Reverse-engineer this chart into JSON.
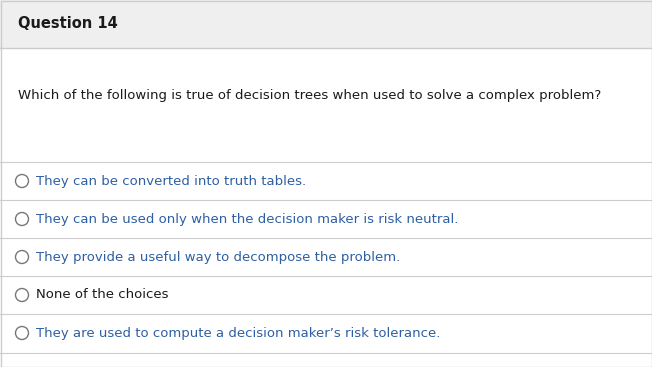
{
  "title": "Question 14",
  "question": "Which of the following is true of decision trees when used to solve a complex problem?",
  "choices": [
    "They can be converted into truth tables.",
    "They can be used only when the decision maker is risk neutral.",
    "They provide a useful way to decompose the problem.",
    "None of the choices",
    "They are used to compute a decision maker’s risk tolerance."
  ],
  "header_bg": "#efefef",
  "body_bg": "#ffffff",
  "title_color": "#1a1a1a",
  "question_color": "#1a1a1a",
  "choice_color": "#2e5fa3",
  "none_choice_color": "#1a1a1a",
  "separator_color": "#cccccc",
  "border_color": "#cccccc",
  "title_fontsize": 10.5,
  "question_fontsize": 9.5,
  "choice_fontsize": 9.5,
  "circle_color": "#777777"
}
